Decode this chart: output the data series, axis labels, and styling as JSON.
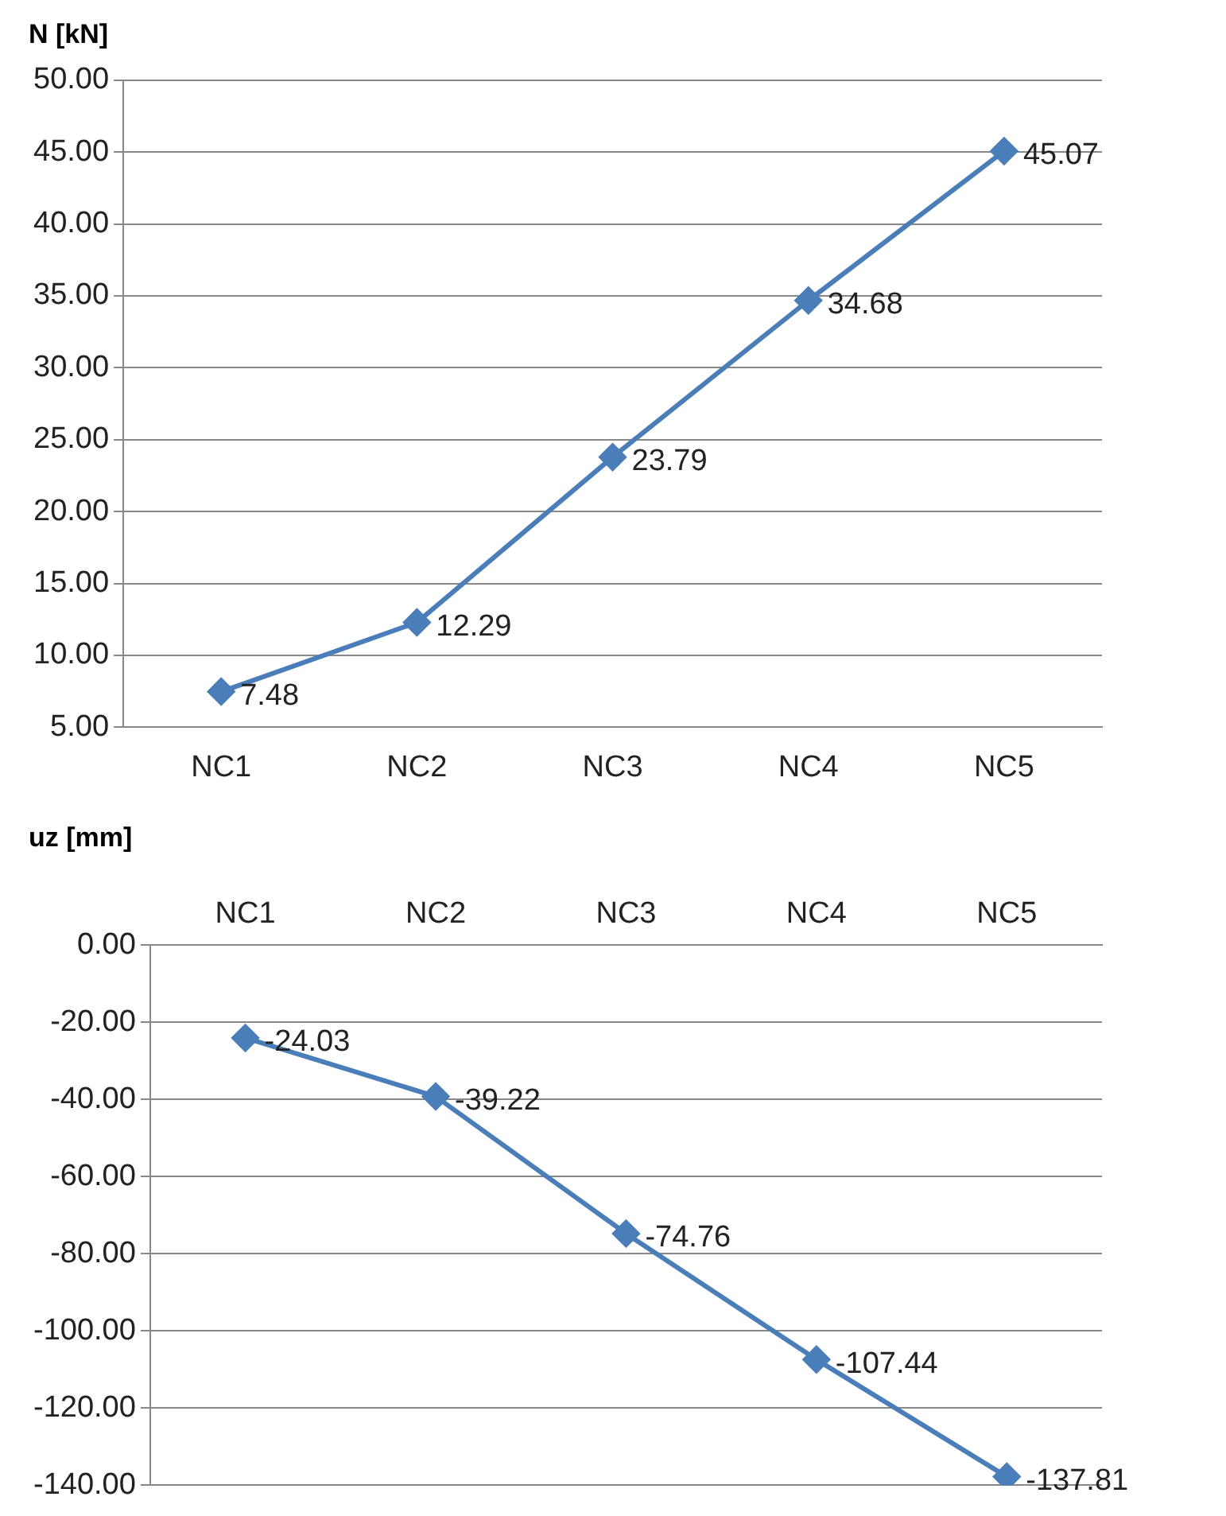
{
  "chart_data": [
    {
      "type": "line",
      "ylabel": "N [kN]",
      "categories": [
        "NC1",
        "NC2",
        "NC3",
        "NC4",
        "NC5"
      ],
      "series": [
        {
          "color": "#4a7ebb",
          "values": [
            7.48,
            12.29,
            23.79,
            34.68,
            45.07
          ]
        }
      ],
      "ylim": [
        5,
        50
      ],
      "yticks": [
        {
          "value": 5,
          "label": "5.00"
        },
        {
          "value": 10,
          "label": "10.00"
        },
        {
          "value": 15,
          "label": "15.00"
        },
        {
          "value": 20,
          "label": "20.00"
        },
        {
          "value": 25,
          "label": "25.00"
        },
        {
          "value": 30,
          "label": "30.00"
        },
        {
          "value": 35,
          "label": "35.00"
        },
        {
          "value": 40,
          "label": "40.00"
        },
        {
          "value": 45,
          "label": "45.00"
        },
        {
          "value": 50,
          "label": "50.00"
        }
      ],
      "grid": "y",
      "legend": false,
      "marker": "diamond",
      "line_style": "solid",
      "data_labels": true
    },
    {
      "type": "line",
      "ylabel": "uz [mm]",
      "categories": [
        "NC1",
        "NC2",
        "NC3",
        "NC4",
        "NC5"
      ],
      "series": [
        {
          "color": "#4a7ebb",
          "values": [
            -24.03,
            -39.22,
            -74.76,
            -107.44,
            -137.81
          ]
        }
      ],
      "ylim": [
        -140,
        0
      ],
      "yticks": [
        {
          "value": -140,
          "label": "-140.00"
        },
        {
          "value": -120,
          "label": "-120.00"
        },
        {
          "value": -100,
          "label": "-100.00"
        },
        {
          "value": -80,
          "label": "-80.00"
        },
        {
          "value": -60,
          "label": "-60.00"
        },
        {
          "value": -40,
          "label": "-40.00"
        },
        {
          "value": -20,
          "label": "-20.00"
        },
        {
          "value": 0,
          "label": "0.00"
        }
      ],
      "grid": "y",
      "legend": false,
      "marker": "diamond",
      "line_style": "solid",
      "data_labels": true
    }
  ]
}
